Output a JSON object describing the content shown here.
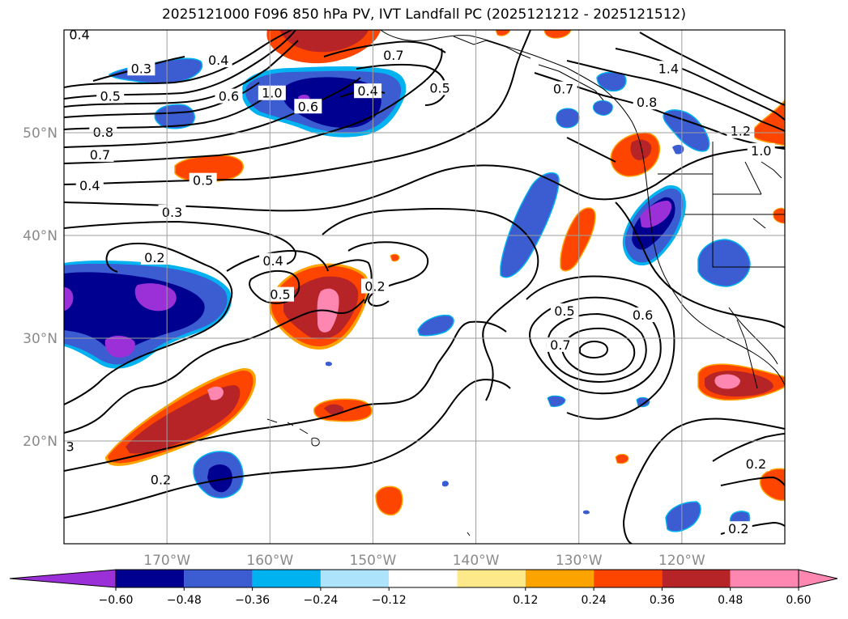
{
  "title": "2025121000 F096 850 hPa PV, IVT Landfall PC (2025121212 - 2025121512)",
  "map": {
    "lon_range": [
      -180,
      -110
    ],
    "lat_range": [
      10,
      60
    ],
    "lat_ticks": [
      {
        "lat": 20,
        "label": "20°N"
      },
      {
        "lat": 30,
        "label": "30°N"
      },
      {
        "lat": 40,
        "label": "40°N"
      },
      {
        "lat": 50,
        "label": "50°N"
      }
    ],
    "lon_ticks": [
      {
        "lon": -170,
        "label": "170°W"
      },
      {
        "lon": -160,
        "label": "160°W"
      },
      {
        "lon": -150,
        "label": "150°W"
      },
      {
        "lon": -140,
        "label": "140°W"
      },
      {
        "lon": -130,
        "label": "130°W"
      },
      {
        "lon": -120,
        "label": "120°W"
      }
    ],
    "contour_labels": [
      {
        "text": "0.4",
        "lon": -178.5,
        "lat": 59.5
      },
      {
        "text": "0.3",
        "lon": -172.5,
        "lat": 56.2
      },
      {
        "text": "0.4",
        "lon": -165,
        "lat": 57
      },
      {
        "text": "0.5",
        "lon": -175.5,
        "lat": 53.5
      },
      {
        "text": "0.6",
        "lon": -164,
        "lat": 53.5
      },
      {
        "text": "0.8",
        "lon": -176.2,
        "lat": 50
      },
      {
        "text": "1.0",
        "lon": -159.8,
        "lat": 53.8
      },
      {
        "text": "0.6",
        "lon": -156.3,
        "lat": 52.5
      },
      {
        "text": "0.4",
        "lon": -150.5,
        "lat": 54
      },
      {
        "text": "0.7",
        "lon": -148,
        "lat": 57.5
      },
      {
        "text": "0.5",
        "lon": -143.5,
        "lat": 54.3
      },
      {
        "text": "0.7",
        "lon": -176.5,
        "lat": 47.8
      },
      {
        "text": "0.5",
        "lon": -166.5,
        "lat": 45.3
      },
      {
        "text": "0.4",
        "lon": -177.5,
        "lat": 44.8
      },
      {
        "text": "0.3",
        "lon": -169.5,
        "lat": 42.2
      },
      {
        "text": "0.2",
        "lon": -171.2,
        "lat": 37.8
      },
      {
        "text": "0.4",
        "lon": -159.7,
        "lat": 37.5
      },
      {
        "text": "0.5",
        "lon": -159,
        "lat": 34.2
      },
      {
        "text": "0.2",
        "lon": -149.8,
        "lat": 35
      },
      {
        "text": "0.7",
        "lon": -131.5,
        "lat": 54.2
      },
      {
        "text": "0.8",
        "lon": -123.4,
        "lat": 52.9
      },
      {
        "text": "1.4",
        "lon": -121.3,
        "lat": 56.2
      },
      {
        "text": "1.2",
        "lon": -114.3,
        "lat": 50.1
      },
      {
        "text": "1.0",
        "lon": -112.3,
        "lat": 48.2
      },
      {
        "text": "0.5",
        "lon": -131.4,
        "lat": 32.6
      },
      {
        "text": "0.7",
        "lon": -131.8,
        "lat": 29.3
      },
      {
        "text": "0.6",
        "lon": -123.8,
        "lat": 32.2
      },
      {
        "text": "3",
        "lon": -179.4,
        "lat": 19.4
      },
      {
        "text": "0.2",
        "lon": -170.6,
        "lat": 16.2
      },
      {
        "text": "0.2",
        "lon": -112.8,
        "lat": 17.7
      },
      {
        "text": "0.2",
        "lon": -114.5,
        "lat": 11.4
      }
    ]
  },
  "colorbar": {
    "colors": [
      "#9b30d9",
      "#000090",
      "#3b5dd1",
      "#00b2f0",
      "#aee4fb",
      "#ffffff",
      "#fde98a",
      "#fda300",
      "#fe4500",
      "#b72427",
      "#fd87b1",
      "#fd87b1"
    ],
    "tick_labels": [
      "−0.60",
      "−0.48",
      "−0.36",
      "−0.24",
      "−0.12",
      "0.12",
      "0.24",
      "0.36",
      "0.48",
      "0.60"
    ]
  }
}
